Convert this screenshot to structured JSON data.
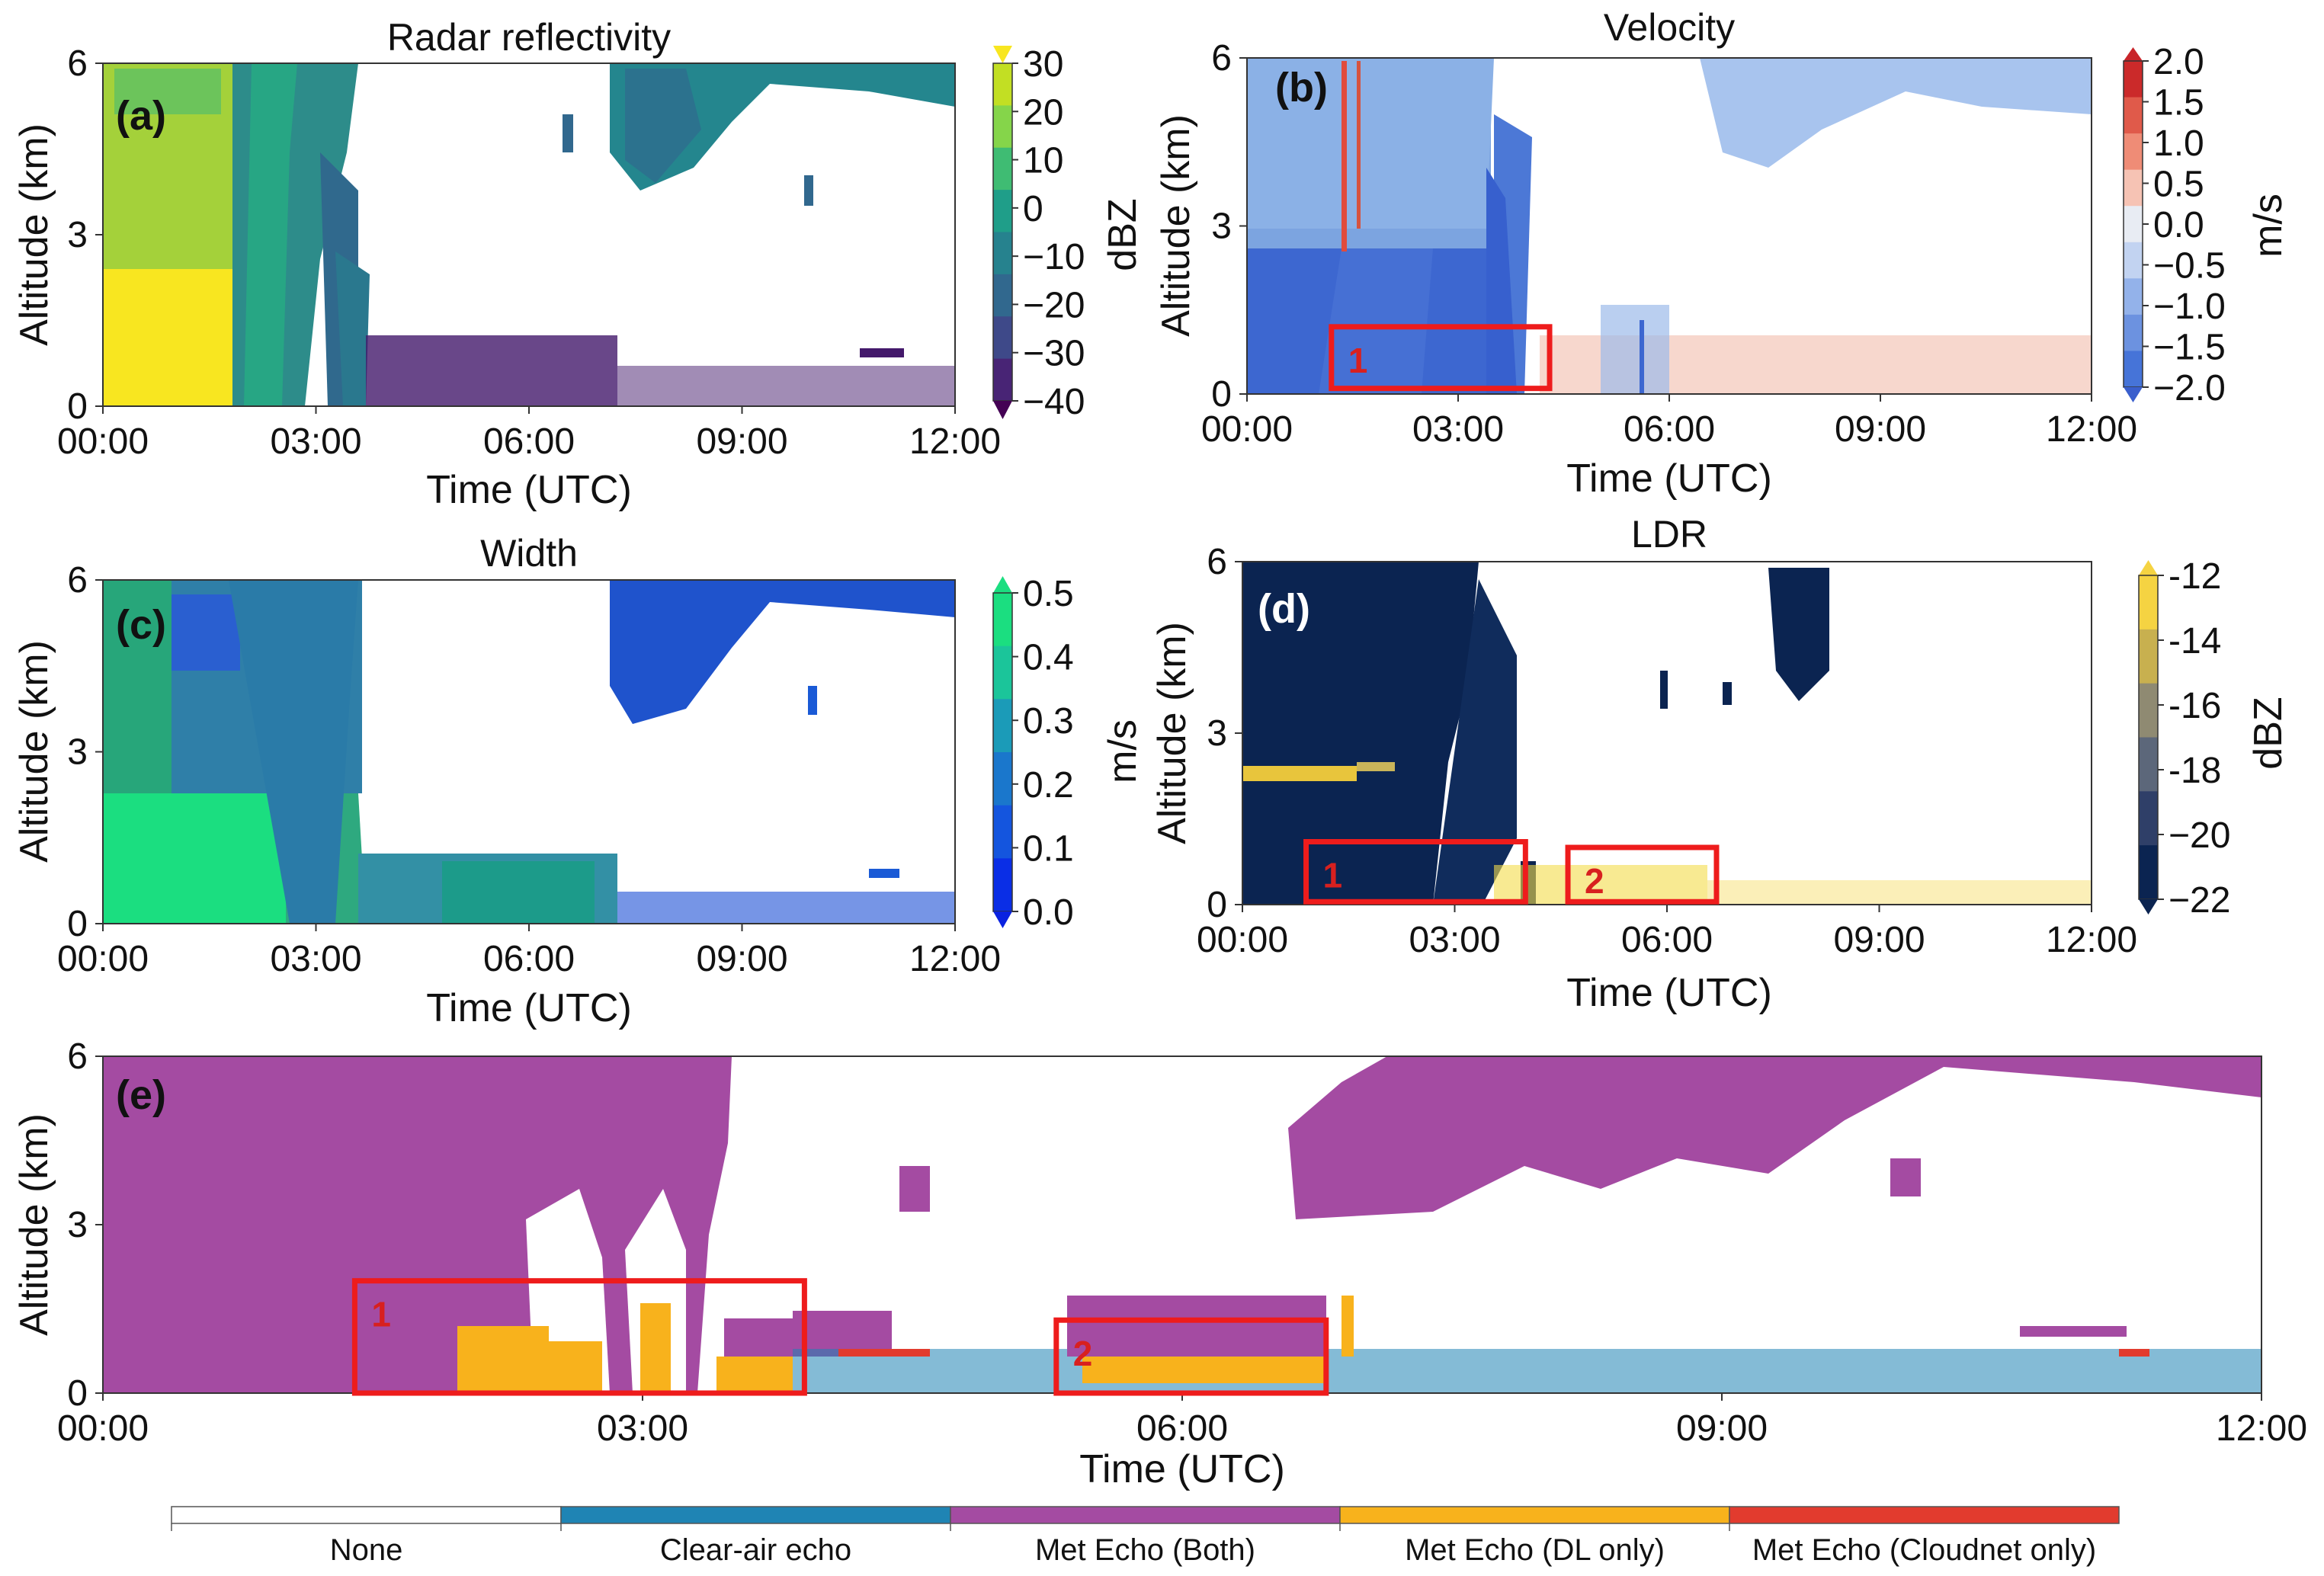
{
  "figure": {
    "panel_tags": [
      "(a)",
      "(b)",
      "(c)",
      "(d)",
      "(e)"
    ],
    "time_ticks": [
      "00:00",
      "03:00",
      "06:00",
      "09:00",
      "12:00"
    ],
    "alt_ticks": [
      "0",
      "3",
      "6"
    ],
    "xlabel": "Time (UTC)",
    "ylabel": "Altitude (km)"
  },
  "chart_data": [
    {
      "id": "a",
      "type": "heatmap",
      "title": "Radar reflectivity",
      "xlabel": "Time (UTC)",
      "ylabel": "Altitude (km)",
      "xlim": [
        0,
        12
      ],
      "ylim": [
        0,
        6
      ],
      "colorbar": {
        "label": "dBZ",
        "ticks": [
          "30",
          "20",
          "10",
          "0",
          "−10",
          "−20",
          "−30",
          "−40"
        ],
        "range": [
          -40,
          30
        ]
      }
    },
    {
      "id": "b",
      "type": "heatmap",
      "title": "Velocity",
      "xlabel": "Time (UTC)",
      "ylabel": "Altitude (km)",
      "xlim": [
        0,
        12
      ],
      "ylim": [
        0,
        6
      ],
      "colorbar": {
        "label": "m/s",
        "ticks": [
          "2.0",
          "1.5",
          "1.0",
          "0.5",
          "0.0",
          "−0.5",
          "−1.0",
          "−1.5",
          "−2.0"
        ],
        "range": [
          -2,
          2
        ]
      },
      "annotations": [
        {
          "label": "1",
          "t0": 1.2,
          "t1": 4.3,
          "h0": 0.1,
          "h1": 1.2
        }
      ]
    },
    {
      "id": "c",
      "type": "heatmap",
      "title": "Width",
      "xlabel": "Time (UTC)",
      "ylabel": "Altitude (km)",
      "xlim": [
        0,
        12
      ],
      "ylim": [
        0,
        6
      ],
      "colorbar": {
        "label": "m/s",
        "ticks": [
          "0.5",
          "0.4",
          "0.3",
          "0.2",
          "0.1",
          "0.0"
        ],
        "range": [
          0,
          0.5
        ]
      }
    },
    {
      "id": "d",
      "type": "heatmap",
      "title": "LDR",
      "xlabel": "Time (UTC)",
      "ylabel": "Altitude (km)",
      "xlim": [
        0,
        12
      ],
      "ylim": [
        0,
        6
      ],
      "colorbar": {
        "label": "dBZ",
        "ticks": [
          "-12",
          "-14",
          "-16",
          "-18",
          "−20",
          "−22"
        ],
        "range": [
          -22,
          -12
        ]
      },
      "annotations": [
        {
          "label": "1",
          "t0": 0.9,
          "t1": 4.0,
          "h0": 0.05,
          "h1": 1.1
        },
        {
          "label": "2",
          "t0": 4.6,
          "t1": 6.7,
          "h0": 0.05,
          "h1": 1.0
        }
      ]
    },
    {
      "id": "e",
      "type": "heatmap",
      "title": "",
      "xlabel": "Time (UTC)",
      "ylabel": "Altitude (km)",
      "xlim": [
        0,
        12
      ],
      "ylim": [
        0,
        6
      ],
      "categories": [
        "None",
        "Clear-air echo",
        "Met Echo (Both)",
        "Met Echo (DL only)",
        "Met Echo (Cloudnet only)"
      ],
      "category_colors": [
        "#ffffff",
        "#1f84b4",
        "#a44ba2",
        "#f8b21c",
        "#e23b2e"
      ],
      "annotations": [
        {
          "label": "1",
          "t0": 1.4,
          "t1": 3.9,
          "h0": 0.0,
          "h1": 2.0
        },
        {
          "label": "2",
          "t0": 5.3,
          "t1": 6.8,
          "h0": 0.0,
          "h1": 1.3
        }
      ]
    }
  ]
}
